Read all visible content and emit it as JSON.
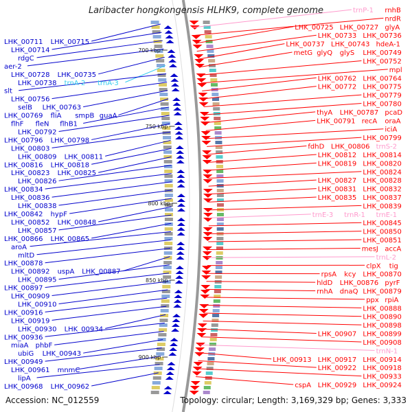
{
  "title": "Laribacter hongkongensis HLHK9, complete genome",
  "accession": "Accession: NC_012559",
  "topology": "Topology: circular; Length: 3,169,329 bp; Genes: 3,333",
  "colors": {
    "forward": "#ff0000",
    "reverse": "#0000cc",
    "trna_forward": "#ff99cc",
    "trna_reverse": "#33ccee",
    "backbone": "#999999",
    "scale_tick": "#006600"
  },
  "scale_ticks": [
    "700 kbp",
    "750 kbp",
    "800 kbp",
    "850 kbp",
    "900 kbp"
  ],
  "right_labels": [
    "trnP-1",
    "rnhB",
    "nrdR",
    "LHK_00725",
    "LHK_00727",
    "glyA",
    "LHK_00733",
    "LHK_00736",
    "LHK_00737",
    "LHK_00743",
    "hdeA-1",
    "metG",
    "glyQ",
    "glyS",
    "LHK_00749",
    "LHK_00752",
    "mpl",
    "LHK_00762",
    "LHK_00764",
    "LHK_00772",
    "LHK_00775",
    "LHK_00779",
    "LHK_00780",
    "thyA",
    "LHK_00787",
    "pcaD",
    "LHK_00791",
    "recA",
    "oraA",
    "iciA",
    "LHK_00799",
    "fdhD",
    "LHK_00806",
    "trnS-2",
    "LHK_00812",
    "LHK_00814",
    "LHK_00819",
    "LHK_00820",
    "LHK_00824",
    "LHK_00827",
    "LHK_00828",
    "LHK_00831",
    "LHK_00832",
    "LHK_00835",
    "LHK_00837",
    "LHK_00839",
    "trnE-3",
    "trnR-1",
    "trnE-1",
    "LHK_00845",
    "LHK_00850",
    "LHK_00851",
    "mesJ",
    "accA",
    "trnL-2",
    "clpX",
    "tig",
    "rpsA",
    "kcy",
    "LHK_00870",
    "hldD",
    "LHK_00876",
    "pyrF",
    "rnhA",
    "dnaQ",
    "LHK_00879",
    "ppx",
    "rpiA",
    "LHK_00888",
    "LHK_00890",
    "LHK_00898",
    "LHK_00907",
    "LHK_00899",
    "LHK_00908",
    "trnN-1",
    "LHK_00913",
    "LHK_00917",
    "LHK_00914",
    "LHK_00922",
    "LHK_00918",
    "LHK_00933",
    "cspA",
    "LHK_00929",
    "LHK_00924"
  ],
  "left_labels": [
    "LHK_00711",
    "LHK_00715",
    "LHK_00714",
    "rdgC",
    "aer-2",
    "LHK_00728",
    "LHK_00735",
    "LHK_00738",
    "trnA-2",
    "trnA-3",
    "slt",
    "LHK_00756",
    "selB",
    "LHK_00763",
    "LHK_00769",
    "fliA",
    "smpB",
    "guaA",
    "flhF",
    "fleN",
    "flhB1",
    "LHK_00792",
    "LHK_00796",
    "LHK_00798",
    "LHK_00803",
    "LHK_00809",
    "LHK_00811",
    "LHK_00816",
    "LHK_00818",
    "LHK_00823",
    "LHK_00825",
    "LHK_00826",
    "LHK_00834",
    "LHK_00836",
    "LHK_00838",
    "LHK_00842",
    "hypF",
    "LHK_00852",
    "LHK_00848",
    "LHK_00857",
    "LHK_00866",
    "LHK_00865",
    "aroA",
    "mltD",
    "LHK_00878",
    "LHK_00892",
    "uspA",
    "LHK_00887",
    "LHK_00895",
    "LHK_00897",
    "LHK_00909",
    "LHK_00910",
    "LHK_00916",
    "LHK_00919",
    "LHK_00930",
    "LHK_00934",
    "LHK_00936",
    "miaA",
    "phbF",
    "ubiG",
    "LHK_00943",
    "LHK_00949",
    "LHK_00961",
    "mnmC",
    "lipA",
    "LHK_00968",
    "LHK_00962"
  ]
}
